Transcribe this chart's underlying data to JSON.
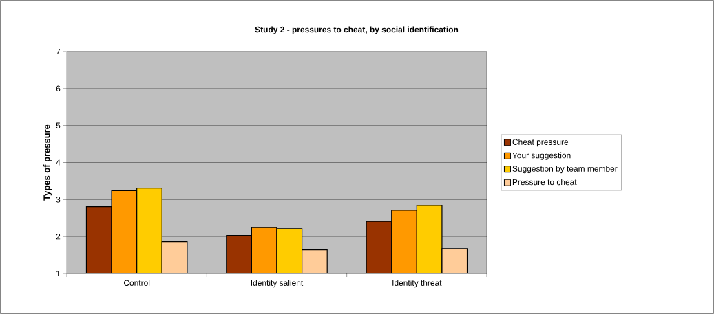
{
  "chart_data": {
    "type": "bar",
    "title": "Study 2 - pressures to cheat, by social identification",
    "ylabel": "Types of pressure",
    "categories": [
      "Control",
      "Identity salient",
      "Identity threat"
    ],
    "series": [
      {
        "name": "Cheat pressure",
        "color": "#993300",
        "values": [
          2.81,
          2.03,
          2.41
        ]
      },
      {
        "name": "Your suggestion",
        "color": "#ff9900",
        "values": [
          3.24,
          2.24,
          2.71
        ]
      },
      {
        "name": "Suggestion by team member",
        "color": "#ffcc00",
        "values": [
          3.31,
          2.21,
          2.84
        ]
      },
      {
        "name": "Pressure to cheat",
        "color": "#ffcc99",
        "values": [
          1.86,
          1.64,
          1.67
        ]
      }
    ],
    "ylim": [
      1,
      7
    ],
    "yticks": [
      1,
      2,
      3,
      4,
      5,
      6,
      7
    ],
    "grid": "y",
    "legend": "right"
  }
}
